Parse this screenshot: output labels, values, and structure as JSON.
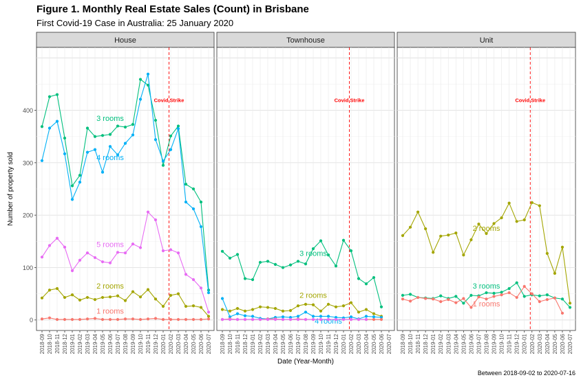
{
  "chart_data": {
    "type": "line",
    "title": "Figure 1. Monthly Real Estate Sales (Count) in Brisbane",
    "subtitle": "First Covid-19 Case in Australia: 25 January 2020",
    "xlabel": "Date (Year-Month)",
    "ylabel": "Number of property sold",
    "caption": "Between 2018-09-02 to 2020-07-16",
    "ylim": [
      -20,
      520
    ],
    "y_ticks": [
      "0",
      "100",
      "200",
      "300",
      "400"
    ],
    "grid": true,
    "legend": "none (direct labels)",
    "x_ticks": [
      "2018-09",
      "2018-10",
      "2018-11",
      "2018-12",
      "2019-01",
      "2019-02",
      "2019-03",
      "2019-04",
      "2019-05",
      "2019-06",
      "2019-07",
      "2019-08",
      "2019-09",
      "2019-10",
      "2019-11",
      "2019-12",
      "2020-01",
      "2020-02",
      "2020-03",
      "2020-04",
      "2020-05",
      "2020-06",
      "2020-07"
    ],
    "covid_marker": {
      "x": "2020-01-25",
      "label": "Covid Strike",
      "color": "#ff0000"
    },
    "colors": {
      "1 rooms": "#f8766d",
      "2 rooms": "#a3a500",
      "3 rooms": "#00bf7d",
      "4 rooms": "#00b0f6",
      "5 rooms": "#e76bf3"
    },
    "panels": [
      {
        "name": "House",
        "series": [
          {
            "name": "3 rooms",
            "x": [
              "2018-09-02",
              "2018-09-17",
              "2018-10-02",
              "2018-10-17",
              "2018-11-01",
              "2018-11-16",
              "2018-12-01",
              "2018-12-16",
              "2018-12-31",
              "2019-01-15",
              "2019-01-30",
              "2019-02-14",
              "2019-03-01",
              "2019-03-16",
              "2019-03-31",
              "2019-04-15",
              "2019-04-30",
              "2019-05-15",
              "2019-05-30",
              "2019-06-14",
              "2019-06-29",
              "2019-07-14",
              "2019-07-29",
              "2019-08-13",
              "2019-08-28",
              "2019-09-12",
              "2019-09-27",
              "2019-10-12",
              "2019-10-27",
              "2019-11-11",
              "2019-11-26",
              "2019-12-11",
              "2019-12-26",
              "2020-01-10",
              "2020-01-25",
              "2020-02-09",
              "2020-02-24",
              "2020-03-10",
              "2020-03-25",
              "2020-04-09",
              "2020-04-24",
              "2020-05-09",
              "2020-05-24",
              "2020-06-08",
              "2020-06-23",
              "2020-07-08"
            ],
            "y": []
          },
          {
            "name": "3 rooms",
            "x": [
              "2018-09",
              "2018-10",
              "2018-11",
              "2018-12",
              "2019-01",
              "2019-02",
              "2019-03",
              "2019-04",
              "2019-05",
              "2019-06",
              "2019-07",
              "2019-08",
              "2019-09",
              "2019-10",
              "2019-11",
              "2019-12",
              "2020-01",
              "2020-02",
              "2020-03",
              "2020-04",
              "2020-05",
              "2020-06",
              "2020-07"
            ],
            "y": []
          }
        ]
      }
    ]
  }
}
